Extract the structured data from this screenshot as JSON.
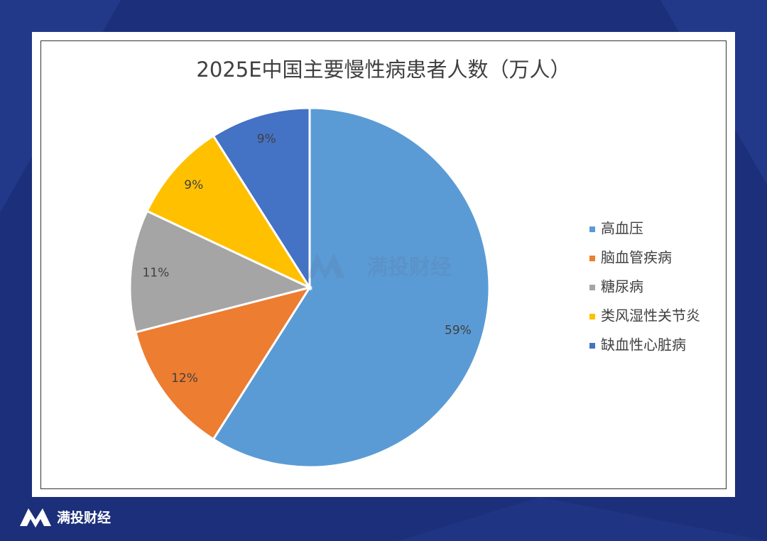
{
  "chart_data": {
    "type": "pie",
    "title": "2025E中国主要慢性病患者人数（万人）",
    "categories": [
      "高血压",
      "脑血管疾病",
      "糖尿病",
      "类风湿性关节炎",
      "缺血性心脏病"
    ],
    "values": [
      59,
      12,
      11,
      9,
      9
    ],
    "value_labels": [
      "59%",
      "12%",
      "11%",
      "9%",
      "9%"
    ],
    "colors": [
      "#5b9bd5",
      "#ed7d31",
      "#a5a5a5",
      "#ffc000",
      "#4472c4"
    ],
    "legend": "right"
  },
  "watermark": "满投财经",
  "footer_brand": "满投财经"
}
